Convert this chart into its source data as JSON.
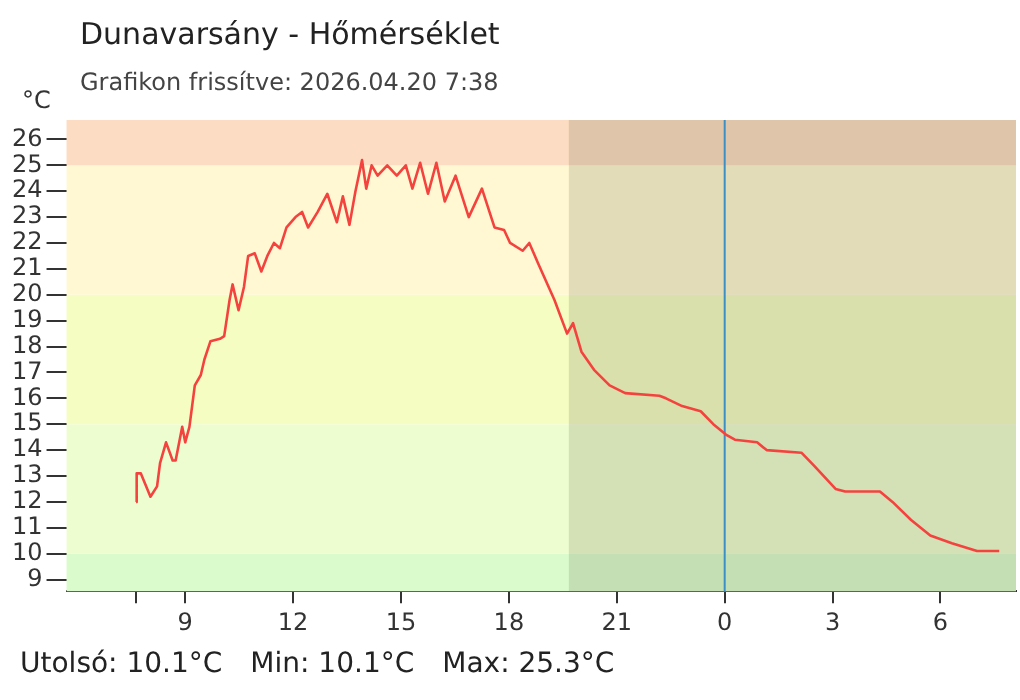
{
  "chart_data": {
    "type": "line",
    "title": "Dunavarsány - Hőmérséklet",
    "subtitle": "Grafikon frissítve: 2026.04.20 7:38",
    "ylabel": "°C",
    "xlim": [
      "2026-04-19T05:42",
      "2026-04-20T08:06"
    ],
    "ylim": [
      8.55,
      26.75
    ],
    "xticks": [
      {
        "value": "2026-04-19T07:38",
        "label": null
      },
      {
        "value": "2026-04-19T09:00",
        "label": "9"
      },
      {
        "value": "2026-04-19T12:00",
        "label": "12"
      },
      {
        "value": "2026-04-19T15:00",
        "label": "15"
      },
      {
        "value": "2026-04-19T18:00",
        "label": "18"
      },
      {
        "value": "2026-04-19T21:00",
        "label": "21"
      },
      {
        "value": "2026-04-20T00:00",
        "label": "0"
      },
      {
        "value": "2026-04-20T03:00",
        "label": "3"
      },
      {
        "value": "2026-04-20T06:00",
        "label": "6"
      }
    ],
    "yticks": [
      9,
      10,
      11,
      12,
      13,
      14,
      15,
      16,
      17,
      18,
      19,
      20,
      21,
      22,
      23,
      24,
      25,
      26
    ],
    "grid": false,
    "legend": false,
    "marker": "none",
    "line_style": "solid",
    "series": [
      {
        "color": "#f4433e",
        "x": [
          "2026-04-19T07:38",
          "2026-04-19T07:39",
          "2026-04-19T07:46",
          "2026-04-19T08:02",
          "2026-04-19T08:13",
          "2026-04-19T08:18",
          "2026-04-19T08:28",
          "2026-04-19T08:39",
          "2026-04-19T08:44",
          "2026-04-19T08:55",
          "2026-04-19T09:00",
          "2026-04-19T09:07",
          "2026-04-19T09:16",
          "2026-04-19T09:26",
          "2026-04-19T09:32",
          "2026-04-19T09:42",
          "2026-04-19T09:58",
          "2026-04-19T10:05",
          "2026-04-19T10:14",
          "2026-04-19T10:19",
          "2026-04-19T10:29",
          "2026-04-19T10:38",
          "2026-04-19T10:45",
          "2026-04-19T10:56",
          "2026-04-19T11:07",
          "2026-04-19T11:17",
          "2026-04-19T11:28",
          "2026-04-19T11:38",
          "2026-04-19T11:49",
          "2026-04-19T12:04",
          "2026-04-19T12:15",
          "2026-04-19T12:25",
          "2026-04-19T12:41",
          "2026-04-19T12:57",
          "2026-04-19T13:13",
          "2026-04-19T13:23",
          "2026-04-19T13:34",
          "2026-04-19T13:44",
          "2026-04-19T13:55",
          "2026-04-19T14:02",
          "2026-04-19T14:11",
          "2026-04-19T14:21",
          "2026-04-19T14:37",
          "2026-04-19T14:53",
          "2026-04-19T15:08",
          "2026-04-19T15:19",
          "2026-04-19T15:32",
          "2026-04-19T15:45",
          "2026-04-19T15:59",
          "2026-04-19T16:13",
          "2026-04-19T16:31",
          "2026-04-19T16:53",
          "2026-04-19T17:15",
          "2026-04-19T17:36",
          "2026-04-19T17:52",
          "2026-04-19T18:02",
          "2026-04-19T18:23",
          "2026-04-19T18:34",
          "2026-04-19T18:49",
          "2026-04-19T19:16",
          "2026-04-19T19:37",
          "2026-04-19T19:47",
          "2026-04-19T20:01",
          "2026-04-19T20:22",
          "2026-04-19T20:48",
          "2026-04-19T21:14",
          "2026-04-19T22:11",
          "2026-04-19T22:22",
          "2026-04-19T22:49",
          "2026-04-19T23:20",
          "2026-04-19T23:41",
          "2026-04-20T00:02",
          "2026-04-20T00:17",
          "2026-04-20T00:54",
          "2026-04-20T01:10",
          "2026-04-20T02:08",
          "2026-04-20T02:29",
          "2026-04-20T03:05",
          "2026-04-20T03:21",
          "2026-04-20T04:19",
          "2026-04-20T04:40",
          "2026-04-20T05:11",
          "2026-04-20T05:43",
          "2026-04-20T06:19",
          "2026-04-20T07:01",
          "2026-04-20T07:38"
        ],
        "values": [
          12.0,
          13.1,
          13.1,
          12.2,
          12.6,
          13.5,
          14.3,
          13.6,
          13.6,
          14.9,
          14.3,
          14.9,
          16.5,
          16.9,
          17.5,
          18.2,
          18.3,
          18.4,
          19.8,
          20.4,
          19.4,
          20.3,
          21.5,
          21.6,
          20.9,
          21.5,
          22.0,
          21.8,
          22.6,
          23.0,
          23.2,
          22.6,
          23.2,
          23.9,
          22.8,
          23.8,
          22.7,
          24.0,
          25.2,
          24.1,
          25.0,
          24.6,
          25.0,
          24.6,
          25.0,
          24.1,
          25.1,
          23.9,
          25.1,
          23.6,
          24.6,
          23.0,
          24.1,
          22.6,
          22.5,
          22.0,
          21.7,
          22.0,
          21.2,
          19.8,
          18.5,
          18.9,
          17.8,
          17.1,
          16.5,
          16.2,
          16.1,
          16.0,
          15.7,
          15.5,
          15.0,
          14.6,
          14.4,
          14.3,
          14.0,
          13.9,
          13.4,
          12.5,
          12.4,
          12.4,
          12.0,
          11.3,
          10.7,
          10.4,
          10.1,
          10.1
        ]
      }
    ],
    "bands": [
      {
        "axis": "y",
        "from": 8.55,
        "to": 10,
        "color": "#dafccc",
        "label": null
      },
      {
        "axis": "y",
        "from": 10,
        "to": 15,
        "color": "#eefdd0",
        "label": null
      },
      {
        "axis": "y",
        "from": 15,
        "to": 20,
        "color": "#f6fdc2",
        "label": null
      },
      {
        "axis": "y",
        "from": 20,
        "to": 25,
        "color": "#fff8d2",
        "label": null
      },
      {
        "axis": "y",
        "from": 25,
        "to": 26.75,
        "color": "#fcdcc2",
        "label": null
      },
      {
        "axis": "x",
        "from": "2026-04-19T19:40",
        "to": "2026-04-20T08:06",
        "color": "#6e6e50",
        "label": null
      }
    ],
    "ref_lines": [
      {
        "axis": "x",
        "value": "2026-04-20T00:00",
        "label": null,
        "color": "#3b8fc4"
      }
    ],
    "annotations": [
      "Utolsó: 10.1°C",
      "Min: 10.1°C",
      "Max: 25.3°C"
    ]
  }
}
